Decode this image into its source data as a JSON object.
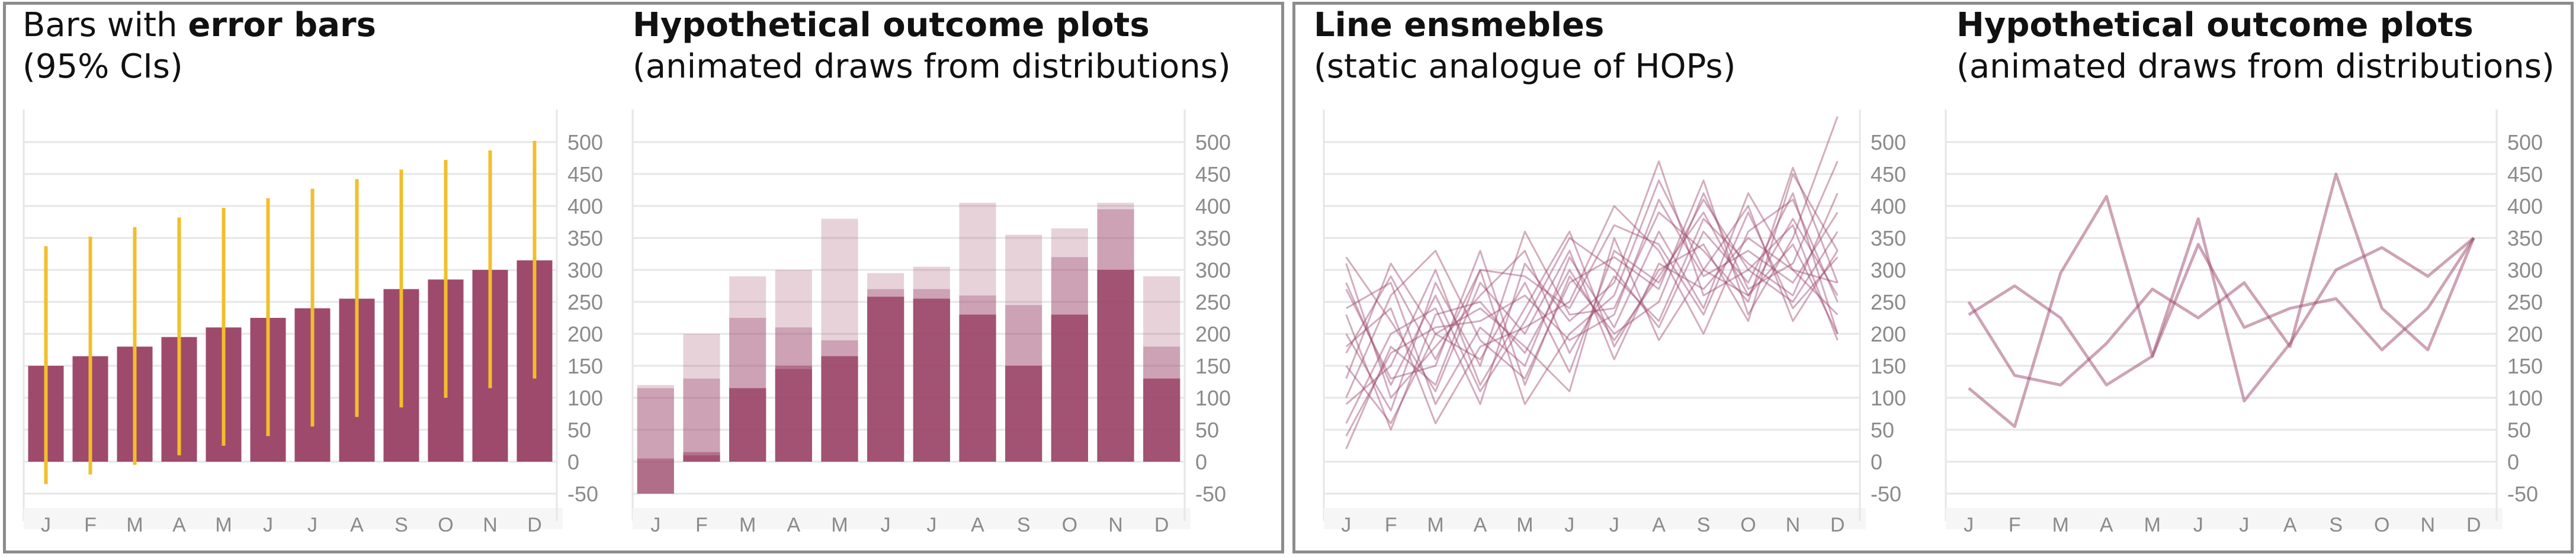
{
  "panels": [
    {
      "title_plain": "Bars with ",
      "title_bold": "error bars",
      "subtitle": "(95% CIs)"
    },
    {
      "title_plain": "",
      "title_bold": "Hypothetical outcome plots",
      "subtitle": "(animated draws from distributions)"
    },
    {
      "title_plain": "",
      "title_bold": "Line ensmebles",
      "subtitle": "(static analogue of HOPs)"
    },
    {
      "title_plain": "",
      "title_bold": "Hypothetical outcome plots",
      "subtitle": "(animated draws from distributions)"
    }
  ],
  "colors": {
    "bar": "#9e4a6c",
    "error": "#f2be2c",
    "grid": "#e6e6e6",
    "frame": "#8c8c8c",
    "tick": "#8a8a8a"
  },
  "chart_data": [
    {
      "type": "bar",
      "categories": [
        "J",
        "F",
        "M",
        "A",
        "M",
        "J",
        "J",
        "A",
        "S",
        "O",
        "N",
        "D"
      ],
      "values": [
        150,
        165,
        180,
        195,
        210,
        225,
        240,
        255,
        270,
        285,
        300,
        315
      ],
      "error_low": [
        -35,
        -20,
        -5,
        10,
        25,
        40,
        55,
        70,
        85,
        100,
        115,
        130
      ],
      "error_high": [
        337,
        352,
        367,
        382,
        397,
        412,
        427,
        442,
        457,
        472,
        487,
        502
      ],
      "ylim": [
        -50,
        500
      ],
      "yticks": [
        -50,
        0,
        50,
        100,
        150,
        200,
        250,
        300,
        350,
        400,
        450,
        500
      ],
      "grid": true
    },
    {
      "type": "bar",
      "categories": [
        "J",
        "F",
        "M",
        "A",
        "M",
        "J",
        "J",
        "A",
        "S",
        "O",
        "N",
        "D"
      ],
      "series": [
        {
          "values": [
            120,
            200,
            290,
            300,
            380,
            295,
            305,
            405,
            355,
            365,
            405,
            290
          ]
        },
        {
          "values": [
            115,
            130,
            225,
            210,
            190,
            270,
            270,
            260,
            245,
            320,
            395,
            180
          ]
        },
        {
          "values": [
            5,
            15,
            115,
            150,
            165,
            258,
            255,
            230,
            150,
            230,
            300,
            130
          ]
        },
        {
          "values": [
            -50,
            10,
            115,
            145,
            165,
            258,
            255,
            230,
            150,
            230,
            300,
            130
          ]
        }
      ],
      "ylim": [
        -50,
        500
      ],
      "yticks": [
        -50,
        0,
        50,
        100,
        150,
        200,
        250,
        300,
        350,
        400,
        450,
        500
      ],
      "grid": true
    },
    {
      "type": "line",
      "x": [
        "J",
        "F",
        "M",
        "A",
        "M",
        "J",
        "J",
        "A",
        "S",
        "O",
        "N",
        "D"
      ],
      "series": [
        {
          "values": [
            20,
            180,
            120,
            300,
            90,
            200,
            260,
            440,
            300,
            260,
            340,
            200
          ]
        },
        {
          "values": [
            150,
            60,
            200,
            160,
            280,
            140,
            330,
            280,
            410,
            300,
            250,
            360
          ]
        },
        {
          "values": [
            240,
            280,
            90,
            210,
            150,
            320,
            210,
            360,
            240,
            420,
            300,
            280
          ]
        },
        {
          "values": [
            90,
            150,
            300,
            120,
            240,
            360,
            180,
            300,
            340,
            220,
            450,
            330
          ]
        },
        {
          "values": [
            310,
            100,
            180,
            260,
            330,
            170,
            290,
            220,
            380,
            310,
            260,
            420
          ]
        },
        {
          "values": [
            180,
            240,
            60,
            180,
            210,
            250,
            400,
            330,
            200,
            360,
            410,
            250
          ]
        },
        {
          "values": [
            60,
            200,
            240,
            90,
            310,
            220,
            280,
            470,
            260,
            300,
            370,
            190
          ]
        },
        {
          "values": [
            270,
            130,
            150,
            330,
            120,
            290,
            200,
            250,
            420,
            270,
            310,
            470
          ]
        },
        {
          "values": [
            130,
            310,
            200,
            240,
            180,
            110,
            350,
            190,
            300,
            400,
            220,
            330
          ]
        },
        {
          "values": [
            200,
            80,
            280,
            150,
            360,
            230,
            240,
            390,
            330,
            250,
            460,
            280
          ]
        },
        {
          "values": [
            320,
            220,
            110,
            280,
            200,
            330,
            160,
            310,
            270,
            350,
            300,
            230
          ]
        },
        {
          "values": [
            100,
            260,
            330,
            190,
            130,
            280,
            320,
            270,
            440,
            230,
            350,
            540
          ]
        },
        {
          "values": [
            40,
            170,
            210,
            220,
            260,
            190,
            230,
            410,
            290,
            330,
            280,
            390
          ]
        },
        {
          "values": [
            280,
            120,
            260,
            110,
            220,
            350,
            300,
            210,
            360,
            280,
            420,
            200
          ]
        },
        {
          "values": [
            170,
            290,
            160,
            300,
            290,
            240,
            370,
            340,
            230,
            390,
            240,
            320
          ]
        },
        {
          "values": [
            230,
            50,
            230,
            250,
            170,
            300,
            190,
            290,
            390,
            260,
            380,
            260
          ]
        }
      ],
      "ylim": [
        -50,
        500
      ],
      "yticks": [
        -50,
        0,
        50,
        100,
        150,
        200,
        250,
        300,
        350,
        400,
        450,
        500
      ],
      "grid": true
    },
    {
      "type": "line",
      "x": [
        "J",
        "F",
        "M",
        "A",
        "M",
        "J",
        "J",
        "A",
        "S",
        "O",
        "N",
        "D"
      ],
      "series": [
        {
          "values": [
            115,
            55,
            295,
            415,
            165,
            340,
            210,
            240,
            255,
            175,
            240,
            350
          ]
        },
        {
          "values": [
            250,
            135,
            120,
            185,
            270,
            225,
            280,
            180,
            450,
            240,
            175,
            350
          ]
        },
        {
          "values": [
            230,
            275,
            225,
            120,
            165,
            380,
            95,
            185,
            300,
            335,
            290,
            350
          ]
        }
      ],
      "ylim": [
        -50,
        500
      ],
      "yticks": [
        -50,
        0,
        50,
        100,
        150,
        200,
        250,
        300,
        350,
        400,
        450,
        500
      ],
      "grid": true
    }
  ]
}
